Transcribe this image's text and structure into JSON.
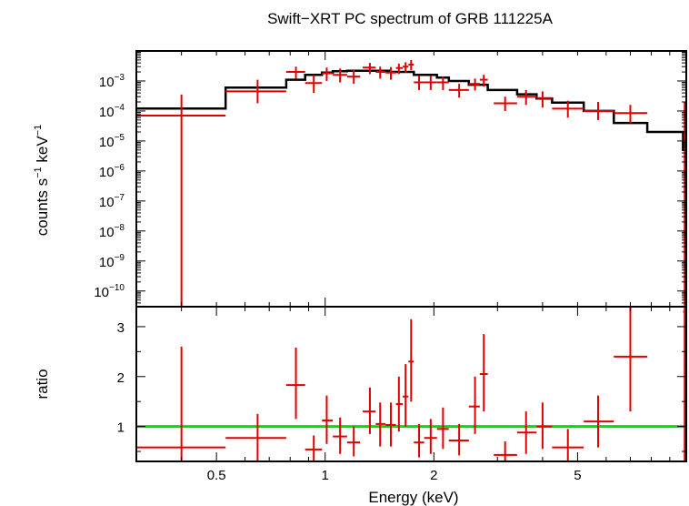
{
  "chart_data": [
    {
      "type": "scatter",
      "title": "Swift−XRT PC spectrum of GRB 111225A",
      "ylabel_text": "counts s",
      "ylabel_sup1": "−1",
      "ylabel_mid": " keV",
      "ylabel_sup2": "−1",
      "xscale": "log",
      "yscale": "log",
      "xlim": [
        0.3,
        10
      ],
      "ylim": [
        3e-11,
        0.01
      ],
      "ytick_exponents": [
        "−10",
        "−9",
        "−8",
        "−7",
        "−6",
        "−5",
        "−4",
        "−3"
      ],
      "ytick_values": [
        -10,
        -9,
        -8,
        -7,
        -6,
        -5,
        -4,
        -3
      ],
      "series": [
        {
          "color": "#e00000",
          "points": [
            {
              "x": 0.4,
              "xlo": 0.3,
              "xhi": 0.53,
              "y": 7e-05,
              "ylo": 3e-11,
              "yhi": 0.00035
            },
            {
              "x": 0.65,
              "xlo": 0.53,
              "xhi": 0.78,
              "y": 0.00045,
              "ylo": 0.00018,
              "yhi": 0.0011
            },
            {
              "x": 0.83,
              "xlo": 0.78,
              "xhi": 0.88,
              "y": 0.002,
              "ylo": 0.0012,
              "yhi": 0.003
            },
            {
              "x": 0.93,
              "xlo": 0.88,
              "xhi": 0.98,
              "y": 0.00085,
              "ylo": 0.0004,
              "yhi": 0.0016
            },
            {
              "x": 1.01,
              "xlo": 0.98,
              "xhi": 1.05,
              "y": 0.0018,
              "ylo": 0.001,
              "yhi": 0.0028
            },
            {
              "x": 1.1,
              "xlo": 1.05,
              "xhi": 1.15,
              "y": 0.0016,
              "ylo": 0.0009,
              "yhi": 0.0026
            },
            {
              "x": 1.2,
              "xlo": 1.15,
              "xhi": 1.25,
              "y": 0.0014,
              "ylo": 0.0008,
              "yhi": 0.0023
            },
            {
              "x": 1.33,
              "xlo": 1.27,
              "xhi": 1.38,
              "y": 0.0028,
              "ylo": 0.0017,
              "yhi": 0.004
            },
            {
              "x": 1.42,
              "xlo": 1.38,
              "xhi": 1.47,
              "y": 0.002,
              "ylo": 0.0012,
              "yhi": 0.003
            },
            {
              "x": 1.52,
              "xlo": 1.47,
              "xhi": 1.57,
              "y": 0.0019,
              "ylo": 0.0011,
              "yhi": 0.0029
            },
            {
              "x": 1.6,
              "xlo": 1.57,
              "xhi": 1.64,
              "y": 0.0027,
              "ylo": 0.0017,
              "yhi": 0.0038
            },
            {
              "x": 1.67,
              "xlo": 1.64,
              "xhi": 1.7,
              "y": 0.003,
              "ylo": 0.0019,
              "yhi": 0.0042
            },
            {
              "x": 1.73,
              "xlo": 1.7,
              "xhi": 1.76,
              "y": 0.0035,
              "ylo": 0.0023,
              "yhi": 0.005
            },
            {
              "x": 1.82,
              "xlo": 1.76,
              "xhi": 1.88,
              "y": 0.0009,
              "ylo": 0.0005,
              "yhi": 0.0015
            },
            {
              "x": 1.96,
              "xlo": 1.88,
              "xhi": 2.04,
              "y": 0.0009,
              "ylo": 0.0005,
              "yhi": 0.0015
            },
            {
              "x": 2.12,
              "xlo": 2.04,
              "xhi": 2.2,
              "y": 0.0009,
              "ylo": 0.0005,
              "yhi": 0.0014
            },
            {
              "x": 2.35,
              "xlo": 2.2,
              "xhi": 2.5,
              "y": 0.0005,
              "ylo": 0.00028,
              "yhi": 0.0008
            },
            {
              "x": 2.6,
              "xlo": 2.5,
              "xhi": 2.68,
              "y": 0.0008,
              "ylo": 0.00048,
              "yhi": 0.0012
            },
            {
              "x": 2.75,
              "xlo": 2.68,
              "xhi": 2.82,
              "y": 0.0011,
              "ylo": 0.00065,
              "yhi": 0.0016
            },
            {
              "x": 3.15,
              "xlo": 2.93,
              "xhi": 3.4,
              "y": 0.00018,
              "ylo": 0.0001,
              "yhi": 0.0003
            },
            {
              "x": 3.6,
              "xlo": 3.4,
              "xhi": 3.85,
              "y": 0.0003,
              "ylo": 0.00016,
              "yhi": 0.0005
            },
            {
              "x": 4.0,
              "xlo": 3.85,
              "xhi": 4.25,
              "y": 0.00027,
              "ylo": 0.00013,
              "yhi": 0.00045
            },
            {
              "x": 4.7,
              "xlo": 4.25,
              "xhi": 5.2,
              "y": 0.00012,
              "ylo": 6e-05,
              "yhi": 0.00022
            },
            {
              "x": 5.7,
              "xlo": 5.2,
              "xhi": 6.3,
              "y": 0.0001,
              "ylo": 5e-05,
              "yhi": 0.0002
            },
            {
              "x": 7.0,
              "xlo": 6.3,
              "xhi": 7.8,
              "y": 8.5e-05,
              "ylo": 4e-05,
              "yhi": 0.00016
            },
            {
              "x": 9.9,
              "xlo": 9.8,
              "xhi": 10.0,
              "y": 1e-05,
              "ylo": 3e-11,
              "yhi": 0.0002
            }
          ]
        },
        {
          "color": "#000000",
          "type": "step",
          "steps": [
            {
              "xlo": 0.3,
              "xhi": 0.53,
              "y": 0.00012
            },
            {
              "xlo": 0.53,
              "xhi": 0.78,
              "y": 0.0006
            },
            {
              "xlo": 0.78,
              "xhi": 0.88,
              "y": 0.0011
            },
            {
              "xlo": 0.88,
              "xhi": 0.98,
              "y": 0.0016
            },
            {
              "xlo": 0.98,
              "xhi": 1.05,
              "y": 0.0019
            },
            {
              "xlo": 1.05,
              "xhi": 1.15,
              "y": 0.0021
            },
            {
              "xlo": 1.15,
              "xhi": 1.3,
              "y": 0.0022
            },
            {
              "xlo": 1.3,
              "xhi": 1.5,
              "y": 0.0022
            },
            {
              "xlo": 1.5,
              "xhi": 1.76,
              "y": 0.002
            },
            {
              "xlo": 1.76,
              "xhi": 2.04,
              "y": 0.0016
            },
            {
              "xlo": 2.04,
              "xhi": 2.2,
              "y": 0.0013
            },
            {
              "xlo": 2.2,
              "xhi": 2.5,
              "y": 0.001
            },
            {
              "xlo": 2.5,
              "xhi": 2.82,
              "y": 0.00075
            },
            {
              "xlo": 2.82,
              "xhi": 3.4,
              "y": 0.0005
            },
            {
              "xlo": 3.4,
              "xhi": 3.85,
              "y": 0.00036
            },
            {
              "xlo": 3.85,
              "xhi": 4.25,
              "y": 0.00026
            },
            {
              "xlo": 4.25,
              "xhi": 5.2,
              "y": 0.00019
            },
            {
              "xlo": 5.2,
              "xhi": 6.3,
              "y": 0.0001
            },
            {
              "xlo": 6.3,
              "xhi": 7.8,
              "y": 4e-05
            },
            {
              "xlo": 7.8,
              "xhi": 9.8,
              "y": 2e-05
            },
            {
              "xlo": 9.8,
              "xhi": 10.0,
              "y": 5e-06
            }
          ]
        }
      ]
    },
    {
      "type": "scatter",
      "xlabel": "Energy (keV)",
      "ylabel": "ratio",
      "xscale": "log",
      "yscale": "linear",
      "xlim": [
        0.3,
        10
      ],
      "ylim": [
        0.3,
        3.4
      ],
      "xticks": [
        0.5,
        1,
        2,
        5
      ],
      "xtick_labels": [
        "0.5",
        "1",
        "2",
        "5"
      ],
      "yticks": [
        1,
        2,
        3
      ],
      "ytick_labels": [
        "1",
        "2",
        "3"
      ],
      "reference_line": {
        "y": 1,
        "color": "#00e000"
      },
      "series": [
        {
          "color": "#e00000",
          "points": [
            {
              "x": 0.4,
              "xlo": 0.3,
              "xhi": 0.53,
              "y": 0.58,
              "ylo": 0.3,
              "yhi": 2.6
            },
            {
              "x": 0.65,
              "xlo": 0.53,
              "xhi": 0.78,
              "y": 0.77,
              "ylo": 0.3,
              "yhi": 1.25
            },
            {
              "x": 0.83,
              "xlo": 0.78,
              "xhi": 0.88,
              "y": 1.83,
              "ylo": 1.15,
              "yhi": 2.58
            },
            {
              "x": 0.93,
              "xlo": 0.88,
              "xhi": 0.98,
              "y": 0.54,
              "ylo": 0.3,
              "yhi": 0.82
            },
            {
              "x": 1.01,
              "xlo": 0.98,
              "xhi": 1.05,
              "y": 1.12,
              "ylo": 0.65,
              "yhi": 1.62
            },
            {
              "x": 1.1,
              "xlo": 1.05,
              "xhi": 1.15,
              "y": 0.8,
              "ylo": 0.45,
              "yhi": 1.18
            },
            {
              "x": 1.2,
              "xlo": 1.15,
              "xhi": 1.25,
              "y": 0.68,
              "ylo": 0.4,
              "yhi": 1.0
            },
            {
              "x": 1.33,
              "xlo": 1.27,
              "xhi": 1.38,
              "y": 1.3,
              "ylo": 0.85,
              "yhi": 1.78
            },
            {
              "x": 1.42,
              "xlo": 1.38,
              "xhi": 1.47,
              "y": 1.05,
              "ylo": 0.6,
              "yhi": 1.48
            },
            {
              "x": 1.52,
              "xlo": 1.47,
              "xhi": 1.57,
              "y": 1.03,
              "ylo": 0.6,
              "yhi": 1.48
            },
            {
              "x": 1.6,
              "xlo": 1.57,
              "xhi": 1.64,
              "y": 1.45,
              "ylo": 0.9,
              "yhi": 2.0
            },
            {
              "x": 1.67,
              "xlo": 1.64,
              "xhi": 1.7,
              "y": 1.6,
              "ylo": 1.0,
              "yhi": 2.25
            },
            {
              "x": 1.73,
              "xlo": 1.7,
              "xhi": 1.76,
              "y": 2.3,
              "ylo": 1.5,
              "yhi": 3.15
            },
            {
              "x": 1.82,
              "xlo": 1.76,
              "xhi": 1.88,
              "y": 0.68,
              "ylo": 0.38,
              "yhi": 1.05
            },
            {
              "x": 1.96,
              "xlo": 1.88,
              "xhi": 2.04,
              "y": 0.77,
              "ylo": 0.45,
              "yhi": 1.15
            },
            {
              "x": 2.12,
              "xlo": 2.04,
              "xhi": 2.2,
              "y": 0.95,
              "ylo": 0.55,
              "yhi": 1.38
            },
            {
              "x": 2.35,
              "xlo": 2.2,
              "xhi": 2.5,
              "y": 0.72,
              "ylo": 0.42,
              "yhi": 1.05
            },
            {
              "x": 2.6,
              "xlo": 2.5,
              "xhi": 2.68,
              "y": 1.4,
              "ylo": 0.85,
              "yhi": 2.0
            },
            {
              "x": 2.75,
              "xlo": 2.68,
              "xhi": 2.82,
              "y": 2.05,
              "ylo": 1.3,
              "yhi": 2.85
            },
            {
              "x": 3.15,
              "xlo": 2.93,
              "xhi": 3.4,
              "y": 0.43,
              "ylo": 0.3,
              "yhi": 0.7
            },
            {
              "x": 3.6,
              "xlo": 3.4,
              "xhi": 3.85,
              "y": 0.88,
              "ylo": 0.45,
              "yhi": 1.3
            },
            {
              "x": 4.0,
              "xlo": 3.85,
              "xhi": 4.25,
              "y": 1.0,
              "ylo": 0.55,
              "yhi": 1.48
            },
            {
              "x": 4.7,
              "xlo": 4.25,
              "xhi": 5.2,
              "y": 0.58,
              "ylo": 0.3,
              "yhi": 0.95
            },
            {
              "x": 5.7,
              "xlo": 5.2,
              "xhi": 6.3,
              "y": 1.1,
              "ylo": 0.58,
              "yhi": 1.62
            },
            {
              "x": 7.0,
              "xlo": 6.3,
              "xhi": 7.8,
              "y": 2.4,
              "ylo": 1.3,
              "yhi": 3.4
            },
            {
              "x": 9.9,
              "xlo": 9.8,
              "xhi": 10.0,
              "y": 3.3,
              "ylo": 0.3,
              "yhi": 3.4
            }
          ]
        }
      ]
    }
  ]
}
